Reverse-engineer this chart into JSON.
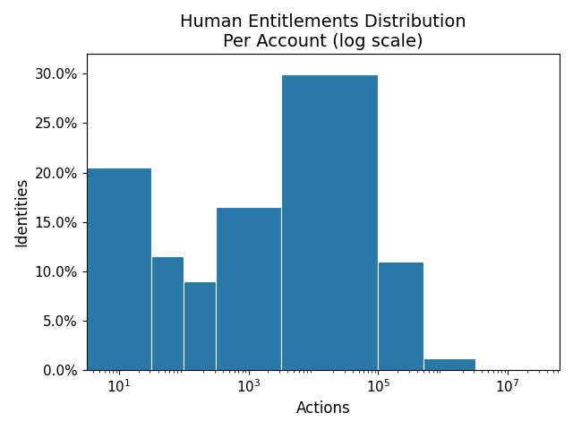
{
  "title": "Human Entitlements Distribution\nPer Account (log scale)",
  "xlabel": "Actions",
  "ylabel": "Identities",
  "bar_color": "#2878a8",
  "bin_edges_log10": [
    0.5,
    1.5,
    2.0,
    2.5,
    3.5,
    5.0,
    5.7,
    6.5,
    7.5
  ],
  "bar_heights": [
    0.205,
    0.115,
    0.09,
    0.165,
    0.299,
    0.11,
    0.012,
    0.001
  ],
  "xlim_log10": [
    0.5,
    7.8
  ],
  "ylim": [
    0,
    0.32
  ],
  "yticks": [
    0.0,
    0.05,
    0.1,
    0.15,
    0.2,
    0.25,
    0.3
  ],
  "ytick_labels": [
    "0.0%",
    "5.0%",
    "10.0%",
    "15.0%",
    "20.0%",
    "25.0%",
    "30.0%"
  ],
  "title_fontsize": 14,
  "label_fontsize": 12,
  "tick_fontsize": 11
}
